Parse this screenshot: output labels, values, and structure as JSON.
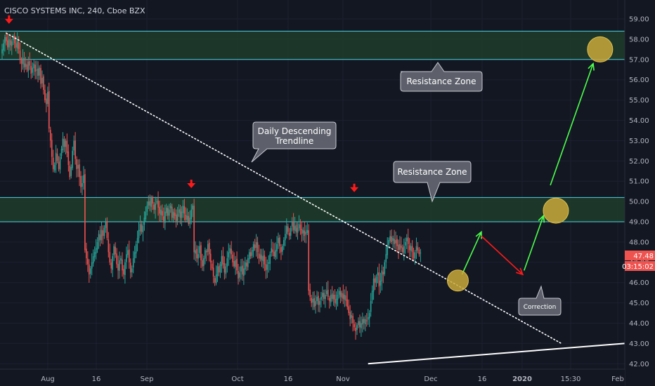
{
  "header": {
    "title": "CISCO SYSTEMS INC, 240, Cboe BZX"
  },
  "price_tags": {
    "last_price": "47.48",
    "countdown": "03:15:02"
  },
  "annotations": {
    "resistance_top": "Resistance Zone",
    "resistance_mid": "Resistance Zone",
    "trendline_line1": "Daily Descending",
    "trendline_line2": "Trendline",
    "correction": "Correction"
  },
  "colors": {
    "background": "#131722",
    "bull": "#26a69a",
    "bear": "#ef5350",
    "zone_fill": "#1e3d2a",
    "zone_border": "#4dd0e1",
    "arrow_green": "#4cff4c",
    "arrow_red": "#ff1a1a",
    "circle_fill": "#c9a83a",
    "callout_fill": "#5d606b"
  },
  "chart_data": {
    "type": "candlestick",
    "title": "CISCO SYSTEMS INC, 240, Cboe BZX",
    "y_ticks": [
      "42.00",
      "43.00",
      "44.00",
      "45.00",
      "46.00",
      "47.00",
      "48.00",
      "49.00",
      "50.00",
      "51.00",
      "52.00",
      "53.00",
      "54.00",
      "55.00",
      "56.00",
      "57.00",
      "58.00",
      "59.00"
    ],
    "x_ticks": [
      "Aug",
      "16",
      "Sep",
      "16",
      "Oct",
      "16",
      "Nov",
      "Dec",
      "16",
      "2020",
      "15:30",
      "Feb"
    ],
    "ylim": [
      42,
      59.5
    ],
    "resistance_zones": [
      {
        "low": 57.0,
        "high": 58.4
      },
      {
        "low": 49.0,
        "high": 50.2
      }
    ],
    "trendlines": [
      {
        "style": "dotted",
        "from": {
          "t": 3,
          "price": 58.3
        },
        "to": {
          "t": 405,
          "price": 43.0
        }
      },
      {
        "style": "solid",
        "from": {
          "t": 265,
          "price": 42.0
        },
        "to": {
          "t": 460,
          "price": 43.05
        }
      }
    ],
    "arrows": [
      {
        "color": "green",
        "from": {
          "t": 333,
          "price": 46.4
        },
        "to": {
          "t": 347,
          "price": 48.5
        }
      },
      {
        "color": "red",
        "from": {
          "t": 347,
          "price": 48.3
        },
        "to": {
          "t": 377,
          "price": 46.4
        }
      },
      {
        "color": "green",
        "from": {
          "t": 378,
          "price": 46.6
        },
        "to": {
          "t": 392,
          "price": 49.3
        }
      },
      {
        "color": "green",
        "from": {
          "t": 397,
          "price": 50.8
        },
        "to": {
          "t": 428,
          "price": 56.8
        }
      }
    ],
    "circles": [
      {
        "t": 330,
        "price": 46.1,
        "r": 15
      },
      {
        "t": 401,
        "price": 49.55,
        "r": 18
      },
      {
        "t": 433,
        "price": 57.5,
        "r": 18
      }
    ],
    "red_down_markers": [
      {
        "t": 5,
        "price": 58.9
      },
      {
        "t": 137,
        "price": 50.8
      },
      {
        "t": 255,
        "price": 50.6
      }
    ],
    "closes": [
      57.5,
      57.8,
      58.1,
      57.9,
      57.6,
      58.0,
      57.7,
      57.9,
      58.1,
      57.8,
      57.6,
      57.9,
      57.5,
      57.0,
      56.8,
      57.1,
      56.6,
      56.8,
      56.5,
      56.9,
      56.7,
      56.3,
      56.6,
      56.8,
      56.4,
      56.5,
      56.2,
      56.6,
      55.8,
      56.1,
      55.5,
      55.0,
      54.8,
      55.4,
      53.6,
      53.0,
      52.2,
      51.6,
      51.8,
      52.4,
      52.0,
      51.6,
      52.2,
      52.6,
      53.1,
      52.7,
      53.0,
      52.4,
      51.8,
      51.2,
      51.7,
      52.5,
      53.0,
      52.1,
      51.6,
      51.8,
      51.2,
      50.7,
      50.9,
      51.3,
      47.6,
      47.2,
      46.9,
      46.4,
      46.7,
      47.0,
      47.3,
      47.5,
      47.7,
      48.0,
      48.4,
      48.1,
      48.6,
      48.3,
      48.7,
      49.0,
      48.2,
      47.5,
      47.0,
      46.7,
      47.3,
      47.8,
      47.4,
      46.9,
      46.6,
      47.1,
      47.2,
      46.6,
      46.4,
      47.0,
      47.4,
      47.6,
      47.0,
      46.5,
      46.7,
      47.2,
      47.5,
      47.9,
      48.2,
      48.6,
      48.9,
      48.5,
      48.8,
      49.2,
      49.5,
      49.8,
      50.0,
      49.8,
      50.2,
      49.9,
      49.6,
      49.9,
      50.0,
      49.7,
      49.4,
      49.6,
      49.3,
      49.0,
      49.5,
      49.7,
      49.3,
      49.6,
      49.8,
      49.2,
      49.5,
      49.3,
      49.0,
      49.4,
      49.6,
      49.2,
      49.5,
      49.8,
      49.4,
      49.1,
      49.3,
      48.9,
      49.2,
      49.6,
      49.8,
      47.5,
      47.6,
      47.2,
      47.4,
      47.8,
      47.1,
      46.8,
      47.2,
      47.6,
      47.5,
      47.9,
      47.4,
      47.0,
      46.7,
      46.3,
      46.0,
      46.4,
      46.8,
      46.5,
      46.9,
      47.3,
      46.9,
      46.5,
      46.8,
      47.2,
      47.5,
      47.7,
      47.4,
      47.0,
      46.8,
      47.1,
      46.6,
      46.2,
      46.5,
      46.8,
      46.4,
      46.7,
      47.0,
      46.8,
      47.2,
      47.5,
      47.3,
      47.6,
      47.9,
      47.7,
      48.0,
      47.5,
      47.2,
      47.4,
      47.1,
      47.3,
      46.9,
      46.6,
      46.9,
      47.0,
      47.4,
      47.7,
      47.5,
      47.3,
      47.6,
      47.9,
      48.2,
      47.8,
      47.5,
      47.8,
      48.1,
      48.4,
      48.8,
      48.5,
      48.3,
      48.7,
      49.0,
      48.6,
      48.8,
      48.5,
      48.7,
      48.9,
      48.6,
      48.4,
      48.6,
      48.3,
      48.5,
      48.6,
      45.6,
      45.3,
      45.0,
      45.2,
      44.8,
      45.1,
      45.3,
      44.9,
      45.1,
      45.3,
      45.5,
      45.2,
      45.4,
      45.6,
      45.3,
      45.1,
      45.4,
      45.2,
      45.4,
      45.0,
      45.2,
      45.4,
      45.6,
      45.3,
      45.5,
      45.2,
      45.4,
      45.1,
      44.8,
      44.5,
      44.2,
      44.4,
      44.0,
      43.8,
      43.6,
      43.9,
      44.1,
      43.8,
      44.0,
      44.2,
      44.0,
      44.2,
      44.1,
      44.3,
      44.5,
      45.1,
      45.6,
      46.2,
      46.0,
      46.3,
      46.5,
      45.8,
      46.1,
      46.6,
      46.4,
      47.0,
      47.4,
      47.8,
      48.1,
      48.3,
      48.0,
      48.2,
      47.9,
      48.1,
      47.8,
      47.6,
      47.9,
      47.7,
      47.5,
      47.8,
      48.0,
      48.2,
      47.9,
      47.6,
      47.8,
      47.5,
      47.2,
      47.5,
      47.8,
      47.6,
      47.4,
      47.48
    ],
    "last_price": "47.48"
  }
}
